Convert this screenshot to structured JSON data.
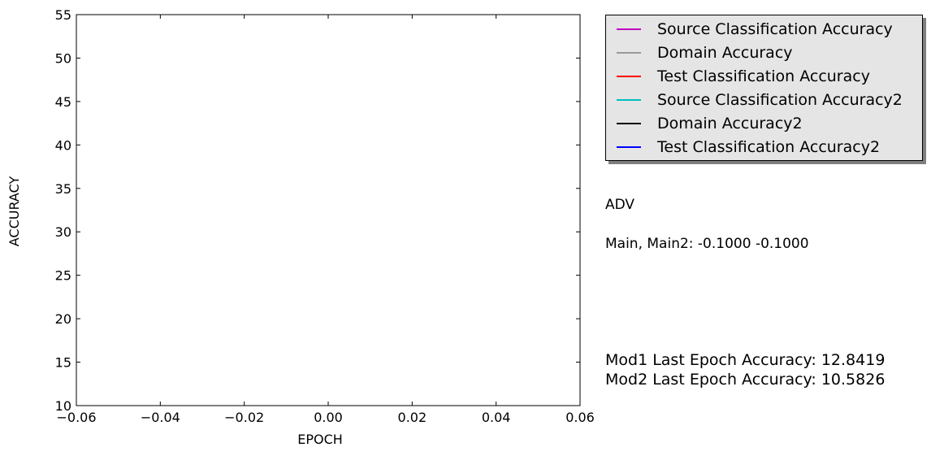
{
  "chart_data": {
    "type": "line",
    "xlabel": "EPOCH",
    "ylabel": "ACCURACY",
    "xlim": [
      -0.06,
      0.06
    ],
    "ylim": [
      10,
      55
    ],
    "x_ticks": [
      "−0.06",
      "−0.04",
      "−0.02",
      "0.00",
      "0.02",
      "0.04",
      "0.06"
    ],
    "x_tick_values": [
      -0.06,
      -0.04,
      -0.02,
      0.0,
      0.02,
      0.04,
      0.06
    ],
    "y_ticks": [
      "10",
      "15",
      "20",
      "25",
      "30",
      "35",
      "40",
      "45",
      "50",
      "55"
    ],
    "y_tick_values": [
      10,
      15,
      20,
      25,
      30,
      35,
      40,
      45,
      50,
      55
    ],
    "grid": false,
    "legend_position": "outside-right-top",
    "series": [
      {
        "name": "Source Classification Accuracy",
        "color": "#bf00bf",
        "x": [],
        "values": []
      },
      {
        "name": "Domain Accuracy",
        "color": "#999999",
        "x": [],
        "values": []
      },
      {
        "name": "Test Classification Accuracy",
        "color": "#ff0000",
        "x": [],
        "values": []
      },
      {
        "name": "Source Classification Accuracy2",
        "color": "#00bfbf",
        "x": [],
        "values": []
      },
      {
        "name": "Domain Accuracy2",
        "color": "#000000",
        "x": [],
        "values": []
      },
      {
        "name": "Test Classification Accuracy2",
        "color": "#0000ff",
        "x": [],
        "values": []
      }
    ]
  },
  "annotations": {
    "method": "ADV",
    "params": "Main, Main2: -0.1000 -0.1000",
    "mod1_accuracy": "Mod1 Last Epoch Accuracy: 12.8419",
    "mod2_accuracy": "Mod2 Last Epoch Accuracy: 10.5826"
  }
}
